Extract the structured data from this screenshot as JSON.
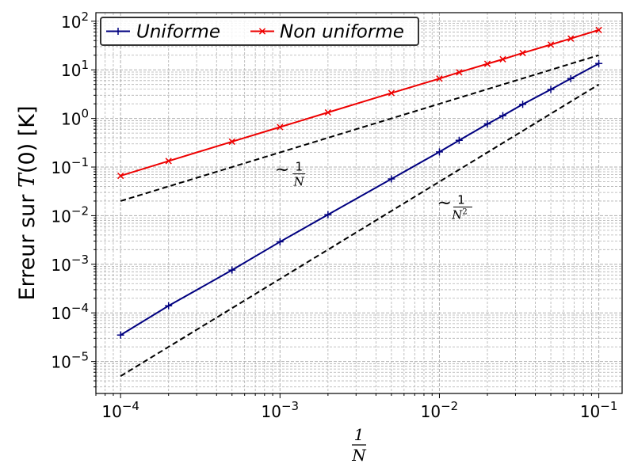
{
  "chart_data": {
    "type": "line",
    "x_scale": "log",
    "y_scale": "log",
    "xlim": [
      7e-05,
      0.14
    ],
    "ylim": [
      2.2e-06,
      150
    ],
    "xlabel": {
      "numerator": "1",
      "denominator": "N"
    },
    "ylabel": {
      "before": "Erreur sur ",
      "italic": "T",
      "after": "(0) [K]"
    },
    "x_ticks": [
      {
        "value": 0.0001,
        "base": "10",
        "exp": "−4"
      },
      {
        "value": 0.001,
        "base": "10",
        "exp": "−3"
      },
      {
        "value": 0.01,
        "base": "10",
        "exp": "−2"
      },
      {
        "value": 0.1,
        "base": "10",
        "exp": "−1"
      }
    ],
    "y_ticks": [
      {
        "value": 1e-05,
        "base": "10",
        "exp": "−5"
      },
      {
        "value": 0.0001,
        "base": "10",
        "exp": "−4"
      },
      {
        "value": 0.001,
        "base": "10",
        "exp": "−3"
      },
      {
        "value": 0.01,
        "base": "10",
        "exp": "−2"
      },
      {
        "value": 0.1,
        "base": "10",
        "exp": "−1"
      },
      {
        "value": 1,
        "base": "10",
        "exp": "0"
      },
      {
        "value": 10,
        "base": "10",
        "exp": "1"
      },
      {
        "value": 100,
        "base": "10",
        "exp": "2"
      }
    ],
    "grid": "major-and-minor",
    "legend_position": "top-left",
    "series": [
      {
        "name": "Uniforme",
        "color": "#000080",
        "marker": "plus",
        "x": [
          0.0001,
          0.0002,
          0.0005,
          0.001,
          0.002,
          0.005,
          0.01,
          0.0133,
          0.02,
          0.025,
          0.0333,
          0.05,
          0.0667,
          0.1
        ],
        "y": [
          3.5e-05,
          0.00014,
          0.00076,
          0.0029,
          0.0105,
          0.057,
          0.205,
          0.355,
          0.77,
          1.14,
          1.95,
          3.95,
          6.6,
          13.5
        ]
      },
      {
        "name": "Non uniforme",
        "color": "#ee0000",
        "marker": "x",
        "x": [
          0.0001,
          0.0002,
          0.0005,
          0.001,
          0.002,
          0.005,
          0.01,
          0.0133,
          0.02,
          0.025,
          0.0333,
          0.05,
          0.0667,
          0.1
        ],
        "y": [
          0.066,
          0.133,
          0.333,
          0.665,
          1.33,
          3.33,
          6.6,
          8.9,
          13.3,
          16.5,
          22.2,
          33,
          44,
          66
        ]
      }
    ],
    "reference_lines": [
      {
        "style": "dashed",
        "color": "#000000",
        "x": [
          0.0001,
          0.1
        ],
        "y": [
          0.02,
          20
        ]
      },
      {
        "style": "dashed",
        "color": "#000000",
        "x": [
          0.0001,
          0.1
        ],
        "y": [
          5e-06,
          5
        ]
      }
    ],
    "annotations": [
      {
        "id": "inv-n",
        "prefix": "~",
        "numerator": "1",
        "denominator": "N",
        "power": "",
        "x": 0.0012,
        "y": 0.06
      },
      {
        "id": "inv-n2",
        "prefix": "~",
        "numerator": "1",
        "denominator": "N",
        "power": "2",
        "x": 0.0125,
        "y": 0.0125
      }
    ]
  }
}
